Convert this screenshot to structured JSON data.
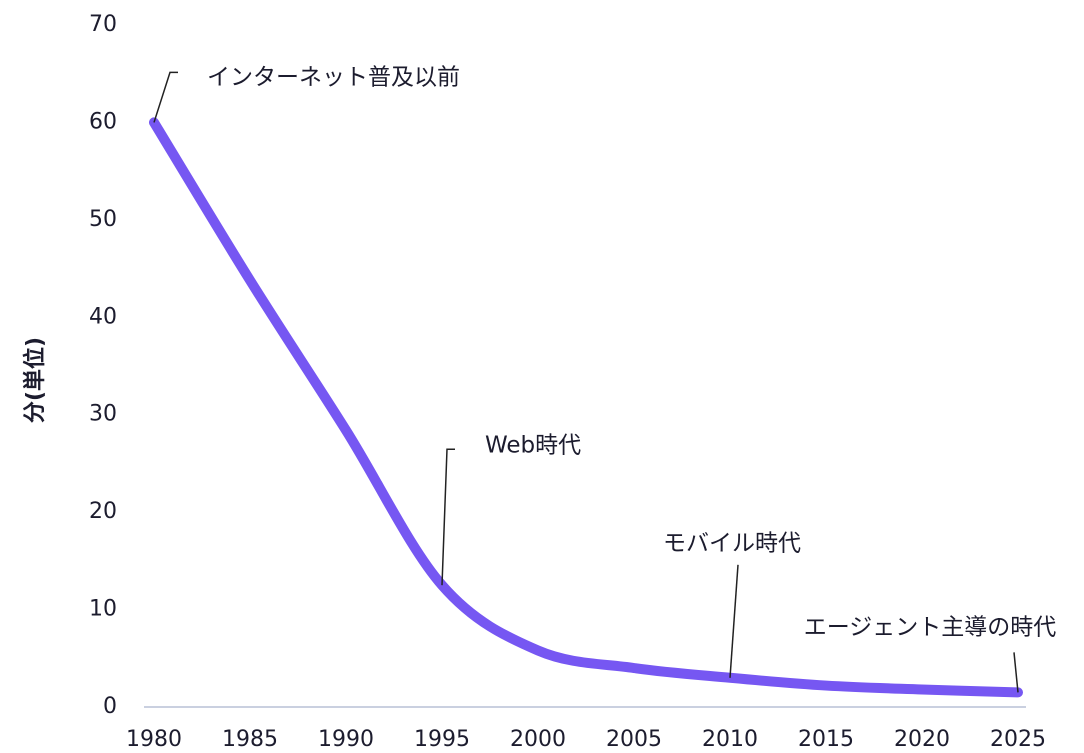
{
  "chart_data": {
    "type": "line",
    "y_label": "分(単位)",
    "x": [
      1980,
      1985,
      1990,
      1995,
      2000,
      2005,
      2010,
      2015,
      2020,
      2025
    ],
    "series": [
      {
        "color": "#7657f2",
        "values": [
          60,
          43.8,
          28.4,
          12.5,
          5.8,
          4,
          3,
          2.2,
          1.8,
          1.5
        ]
      }
    ],
    "xlim": [
      1980,
      2025
    ],
    "xticks": [
      1980,
      1985,
      1990,
      1995,
      2000,
      2005,
      2010,
      2015,
      2020,
      2025
    ],
    "ylim": [
      0,
      70
    ],
    "yticks": [
      0,
      10,
      20,
      30,
      40,
      50,
      60,
      70
    ],
    "grid": false,
    "annotations": [
      {
        "text": "インターネット普及以前",
        "x": 1980
      },
      {
        "text": "Web時代",
        "x": 1995
      },
      {
        "text": "モバイル時代",
        "x": 2010
      },
      {
        "text": "エージェント主導の時代",
        "x": 2025
      }
    ]
  }
}
